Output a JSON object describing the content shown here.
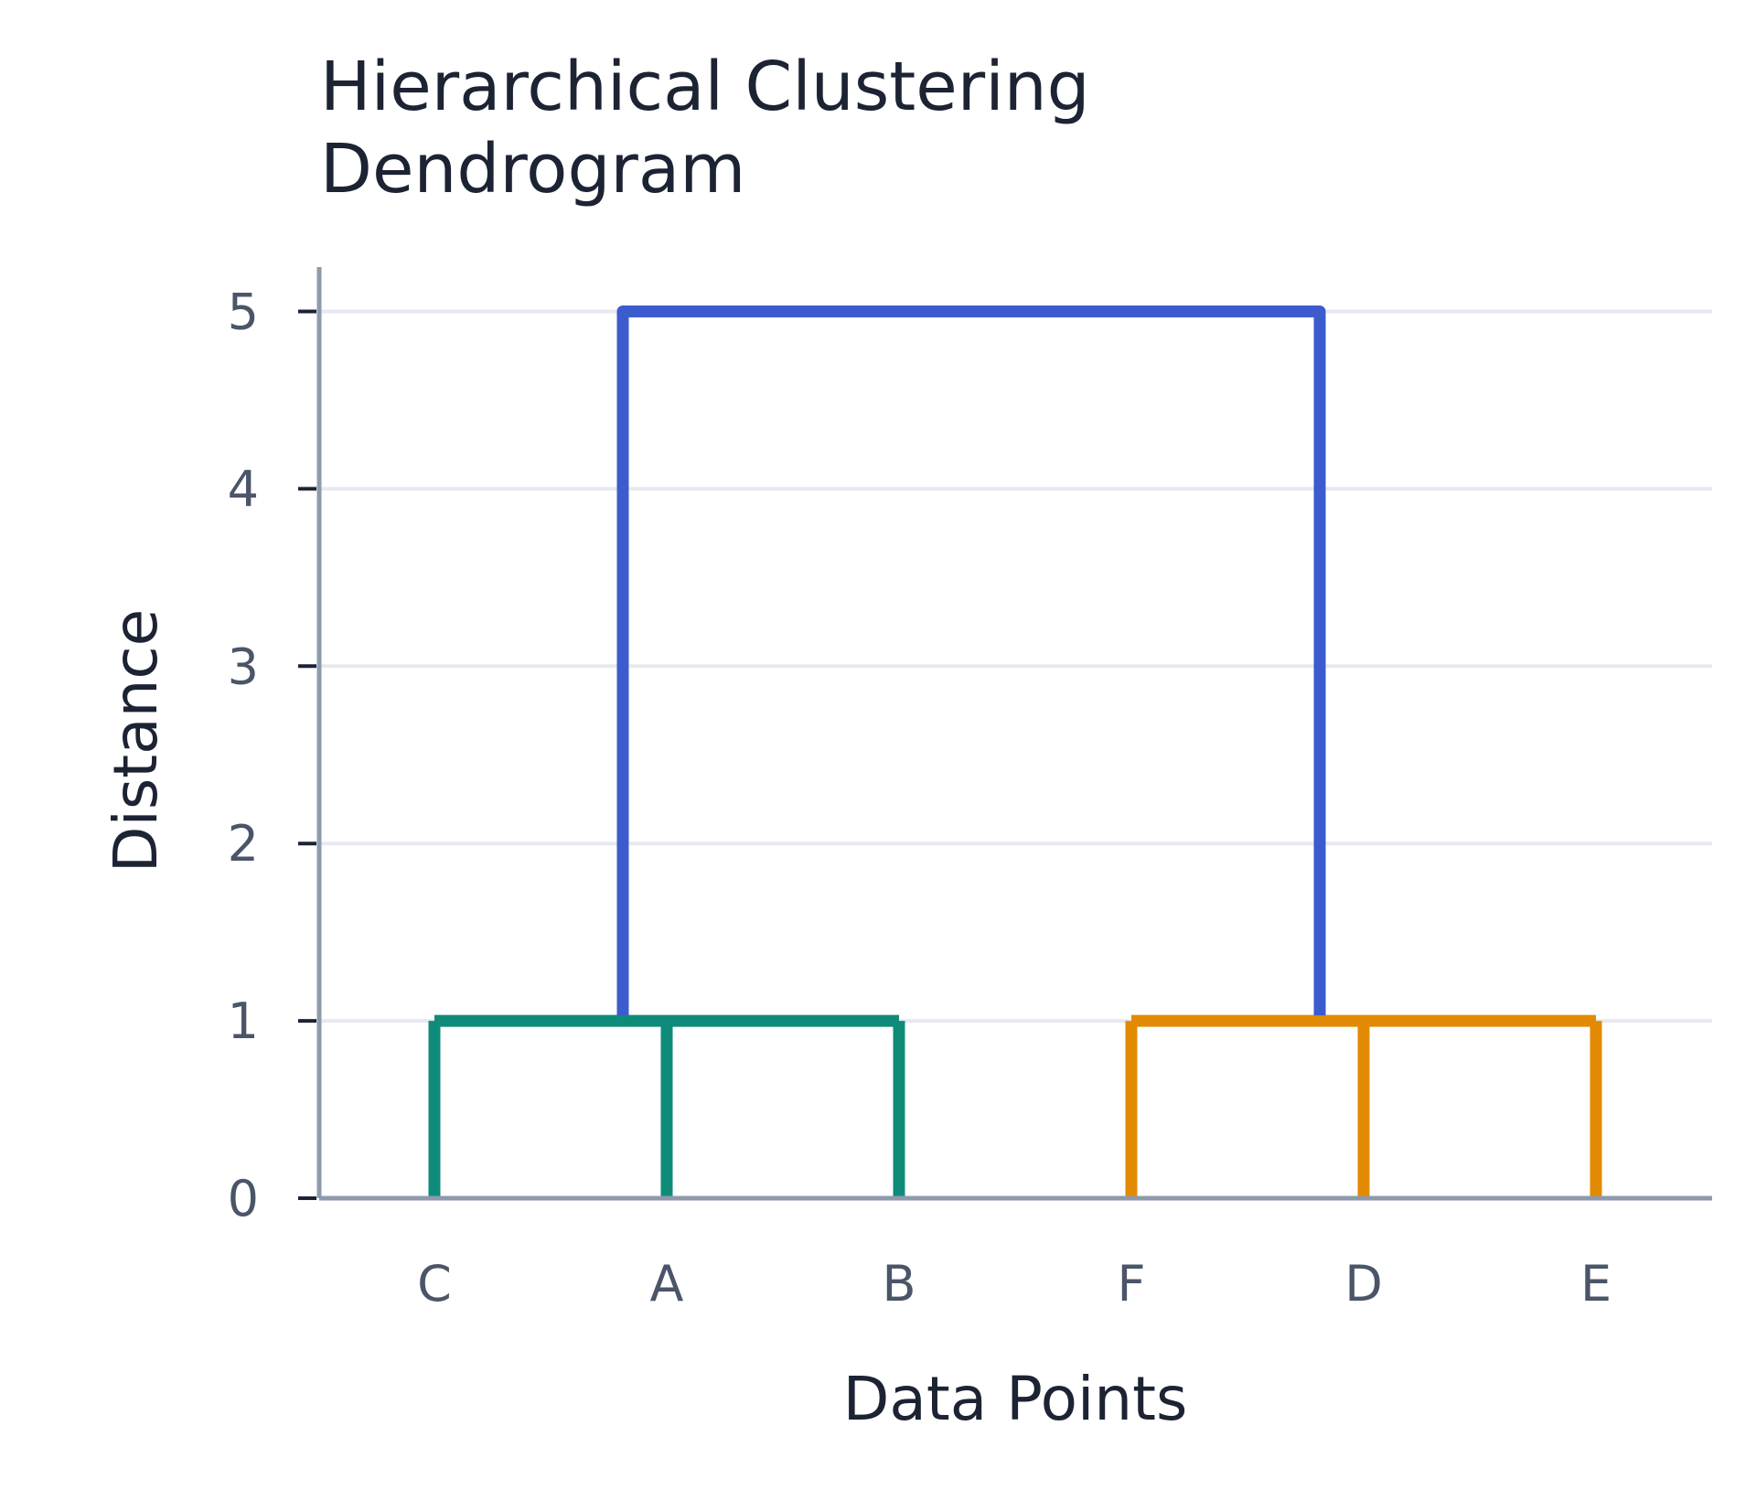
{
  "chart_data": {
    "type": "dendrogram",
    "title_lines": [
      "Hierarchical Clustering",
      "Dendrogram"
    ],
    "xlabel": "Data Points",
    "ylabel": "Distance",
    "leaves": [
      "C",
      "A",
      "B",
      "F",
      "D",
      "E"
    ],
    "yticks": [
      0,
      1,
      2,
      3,
      4,
      5
    ],
    "ylim": [
      0,
      5.25
    ],
    "grid": true,
    "clusters": [
      {
        "members": [
          "C",
          "A",
          "B"
        ],
        "height": 1,
        "color": "#0f8b7a"
      },
      {
        "members": [
          "F",
          "D",
          "E"
        ],
        "height": 1,
        "color": "#e38a05"
      }
    ],
    "root": {
      "joins": [
        "C-A-B",
        "F-D-E"
      ],
      "height": 5,
      "color": "#3c5bcc"
    }
  }
}
